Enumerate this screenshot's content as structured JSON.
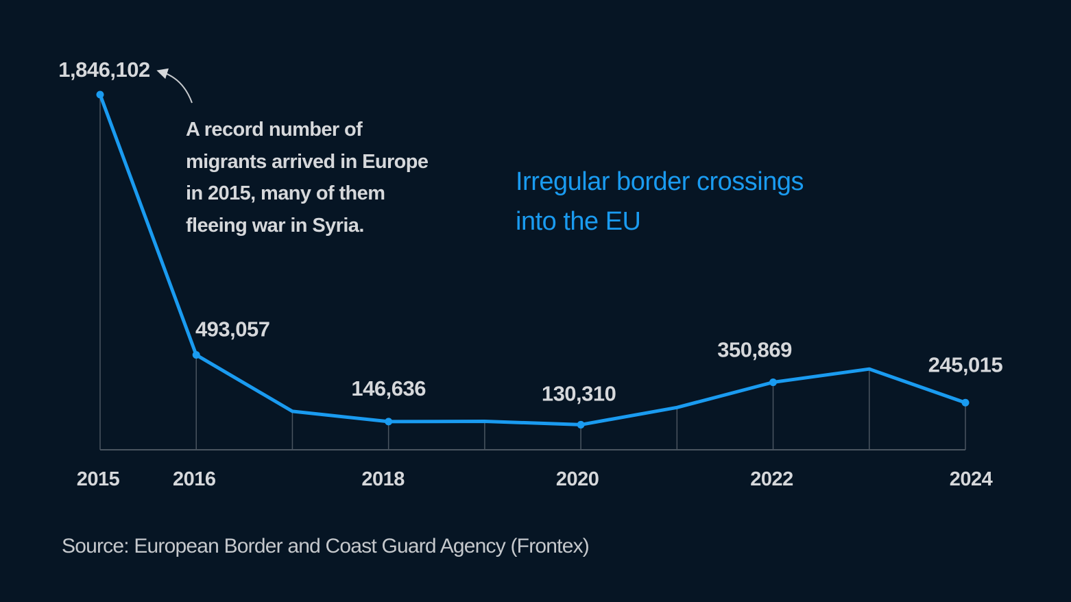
{
  "chart_data": {
    "type": "line",
    "title": "Irregular border crossings into the EU",
    "title_lines": [
      "Irregular border crossings",
      "into the EU"
    ],
    "x": [
      2015,
      2016,
      2017,
      2018,
      2019,
      2020,
      2021,
      2022,
      2023,
      2024
    ],
    "series": [
      {
        "values": [
          1846102,
          493057,
          200000,
          146636,
          148000,
          130310,
          220000,
          350869,
          420000,
          245015
        ]
      }
    ],
    "data_labels": [
      {
        "x": 2015,
        "text": "1,846,102"
      },
      {
        "x": 2016,
        "text": "493,057"
      },
      {
        "x": 2018,
        "text": "146,636"
      },
      {
        "x": 2020,
        "text": "130,310"
      },
      {
        "x": 2022,
        "text": "350,869"
      },
      {
        "x": 2024,
        "text": "245,015"
      }
    ],
    "x_tick_labels": [
      {
        "x": 2015,
        "text": "2015"
      },
      {
        "x": 2016,
        "text": "2016"
      },
      {
        "x": 2018,
        "text": "2018"
      },
      {
        "x": 2020,
        "text": "2020"
      },
      {
        "x": 2022,
        "text": "2022"
      },
      {
        "x": 2024,
        "text": "2024"
      }
    ],
    "xlim": [
      2015,
      2024
    ],
    "ylim": [
      0,
      1900000
    ],
    "grid": false,
    "annotation": {
      "x": 2015,
      "lines": [
        "A record number of",
        "migrants arrived in Europe",
        "in 2015, many of them",
        "fleeing war in Syria."
      ]
    },
    "source": "Source: European Border and Coast Guard Agency (Frontex)",
    "colors": {
      "background": "#061524",
      "line": "#1a9bf0",
      "text": "#d6d8db",
      "axis": "#4a5560"
    }
  }
}
